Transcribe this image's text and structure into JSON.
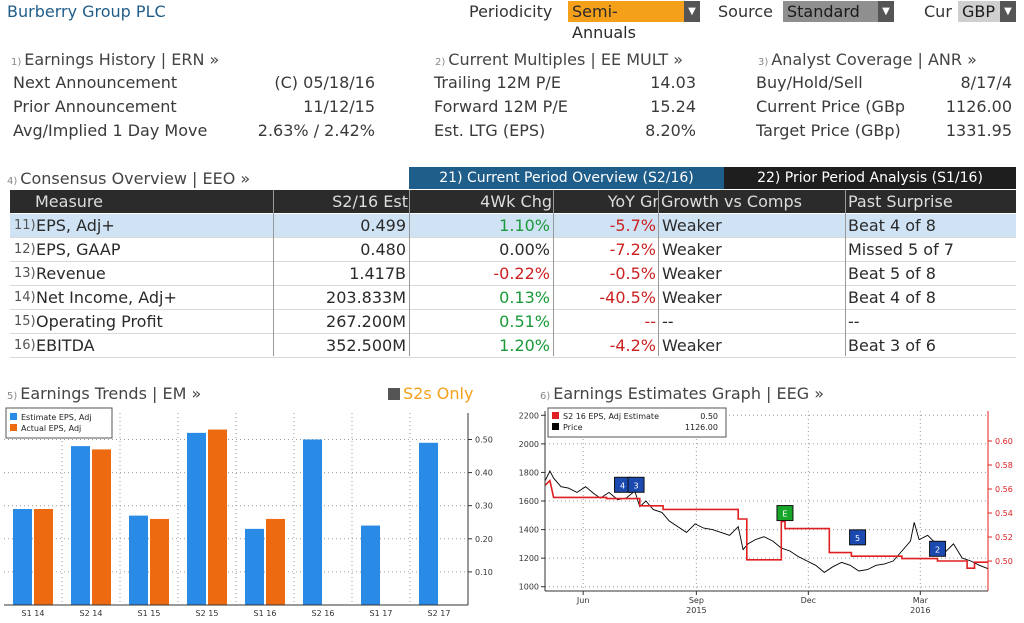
{
  "header": {
    "company": "Burberry Group PLC",
    "periodicity_label": "Periodicity",
    "periodicity_value": "Semi-Annuals",
    "source_label": "Source",
    "source_value": "Standard",
    "cur_label": "Cur",
    "cur_value": "GBP",
    "colors": {
      "periodicity_bg": "#f5a01a",
      "source_bg": "#8f8f8f",
      "cur_bg": "#cfcfcf"
    }
  },
  "earnings_history": {
    "num": "1)",
    "title": "Earnings History | ERN »",
    "rows": [
      {
        "label": "Next Announcement",
        "value": "(C)  05/18/16"
      },
      {
        "label": "Prior Announcement",
        "value": "11/12/15"
      },
      {
        "label": "Avg/Implied 1 Day Move",
        "value": "2.63% / 2.42%"
      }
    ]
  },
  "current_multiples": {
    "num": "2)",
    "title": "Current Multiples | EE MULT »",
    "rows": [
      {
        "label": "Trailing 12M P/E",
        "value": "14.03"
      },
      {
        "label": "Forward 12M P/E",
        "value": "15.24"
      },
      {
        "label": "Est. LTG (EPS)",
        "value": "8.20%"
      }
    ]
  },
  "analyst_coverage": {
    "num": "3)",
    "title": "Analyst Coverage | ANR »",
    "rows": [
      {
        "label": "Buy/Hold/Sell",
        "value": "8/17/4"
      },
      {
        "label": "Current Price (GBp",
        "value": "1126.00"
      },
      {
        "label": "Target Price (GBp)",
        "value": "1331.95"
      }
    ]
  },
  "consensus": {
    "num": "4)",
    "title": "Consensus Overview | EEO »",
    "tab_current": "21) Current Period Overview (S2/16)",
    "tab_prior": "22) Prior Period Analysis (S1/16)",
    "columns": [
      "Measure",
      "S2/16 Est",
      "4Wk Chg",
      "YoY Gr",
      "Growth vs Comps",
      "Past Surprise"
    ],
    "rows": [
      {
        "num": "11)",
        "measure": "EPS, Adj+",
        "est": "0.499",
        "chg": "1.10%",
        "chg_color": "green",
        "yoy": "-5.7%",
        "growth": "Weaker",
        "surprise": "Beat 4 of 8",
        "selected": true
      },
      {
        "num": "12)",
        "measure": "EPS, GAAP",
        "est": "0.480",
        "chg": "0.00%",
        "chg_color": "plain",
        "yoy": "-7.2%",
        "growth": "Weaker",
        "surprise": "Missed 5 of 7",
        "selected": false
      },
      {
        "num": "13)",
        "measure": "Revenue",
        "est": "1.417B",
        "chg": "-0.22%",
        "chg_color": "red",
        "yoy": "-0.5%",
        "growth": "Weaker",
        "surprise": "Beat 5 of 8",
        "selected": false
      },
      {
        "num": "14)",
        "measure": "Net Income, Adj+",
        "est": "203.833M",
        "chg": "0.13%",
        "chg_color": "green",
        "yoy": "-40.5%",
        "growth": "Weaker",
        "surprise": "Beat 4 of 8",
        "selected": false
      },
      {
        "num": "15)",
        "measure": "Operating Profit",
        "est": "267.200M",
        "chg": "0.51%",
        "chg_color": "green",
        "yoy": "--",
        "growth": "--",
        "surprise": "--",
        "selected": false
      },
      {
        "num": "16)",
        "measure": "EBITDA",
        "est": "352.500M",
        "chg": "1.20%",
        "chg_color": "green",
        "yoy": "-4.2%",
        "growth": "Weaker",
        "surprise": "Beat 3 of 6",
        "selected": false
      }
    ]
  },
  "trends_section": {
    "num": "5)",
    "title": "Earnings Trends | EM »",
    "s2s_label": "S2s Only"
  },
  "estimates_section": {
    "num": "6)",
    "title": "Earnings Estimates Graph | EEG »"
  },
  "chart_data": [
    {
      "type": "bar",
      "categories": [
        "S1 14",
        "S2 14",
        "S1 15",
        "S2 15",
        "S1 16",
        "S2 16",
        "S1 17",
        "S2 17"
      ],
      "series": [
        {
          "name": "Estimate EPS, Adj",
          "color": "#2a8be6",
          "values": [
            0.29,
            0.48,
            0.27,
            0.52,
            0.23,
            0.5,
            0.24,
            0.49
          ]
        },
        {
          "name": "Actual EPS, Adj",
          "color": "#ee6a10",
          "values": [
            0.29,
            0.47,
            0.26,
            0.53,
            0.26,
            null,
            null,
            null
          ]
        }
      ],
      "ylim": [
        0.0,
        0.58
      ],
      "yticks": [
        0.1,
        0.2,
        0.3,
        0.4,
        0.5
      ],
      "ytick_labels": [
        "0.10",
        "0.20",
        "0.30",
        "0.40",
        "0.50"
      ],
      "legend_position": "top-left",
      "grid": true
    },
    {
      "type": "line",
      "legend": [
        {
          "name": "S2 16 EPS, Adj Estimate",
          "value": "0.50",
          "color": "#e02020"
        },
        {
          "name": "Price",
          "value": "1126.00",
          "color": "#000000"
        }
      ],
      "x_range": [
        "2015-05-01",
        "2016-04-25"
      ],
      "x_ticks": [
        {
          "date": "2015-06-01",
          "label": "Jun"
        },
        {
          "date": "2015-09-01",
          "label": "Sep",
          "year": "2015"
        },
        {
          "date": "2015-12-01",
          "label": "Dec"
        },
        {
          "date": "2016-03-01",
          "label": "Mar",
          "year": "2016"
        }
      ],
      "y_left": {
        "range": [
          970,
          2230
        ],
        "ticks": [
          1000,
          1200,
          1400,
          1600,
          1800,
          2000,
          2200
        ]
      },
      "y_right": {
        "range": [
          0.475,
          0.625
        ],
        "ticks": [
          0.5,
          0.52,
          0.54,
          0.56,
          0.58,
          0.6
        ],
        "tick_labels": [
          "0.50",
          "0.52",
          "0.54",
          "0.56",
          "0.58",
          "0.60"
        ]
      },
      "series": [
        {
          "name": "Price",
          "color": "#000000",
          "axis": "left",
          "points": [
            [
              "2015-05-01",
              1740
            ],
            [
              "2015-05-05",
              1810
            ],
            [
              "2015-05-08",
              1760
            ],
            [
              "2015-05-14",
              1700
            ],
            [
              "2015-05-20",
              1690
            ],
            [
              "2015-05-27",
              1660
            ],
            [
              "2015-06-03",
              1700
            ],
            [
              "2015-06-10",
              1650
            ],
            [
              "2015-06-15",
              1620
            ],
            [
              "2015-06-22",
              1660
            ],
            [
              "2015-06-29",
              1610
            ],
            [
              "2015-07-06",
              1620
            ],
            [
              "2015-07-13",
              1670
            ],
            [
              "2015-07-17",
              1560
            ],
            [
              "2015-07-22",
              1600
            ],
            [
              "2015-07-28",
              1540
            ],
            [
              "2015-08-04",
              1520
            ],
            [
              "2015-08-10",
              1460
            ],
            [
              "2015-08-17",
              1420
            ],
            [
              "2015-08-24",
              1380
            ],
            [
              "2015-08-31",
              1440
            ],
            [
              "2015-09-07",
              1410
            ],
            [
              "2015-09-14",
              1400
            ],
            [
              "2015-09-21",
              1380
            ],
            [
              "2015-09-28",
              1360
            ],
            [
              "2015-10-05",
              1420
            ],
            [
              "2015-10-09",
              1260
            ],
            [
              "2015-10-13",
              1300
            ],
            [
              "2015-10-19",
              1330
            ],
            [
              "2015-10-26",
              1350
            ],
            [
              "2015-11-02",
              1320
            ],
            [
              "2015-11-09",
              1270
            ],
            [
              "2015-11-16",
              1250
            ],
            [
              "2015-11-23",
              1210
            ],
            [
              "2015-11-30",
              1180
            ],
            [
              "2015-12-07",
              1150
            ],
            [
              "2015-12-14",
              1100
            ],
            [
              "2015-12-21",
              1140
            ],
            [
              "2015-12-28",
              1170
            ],
            [
              "2016-01-04",
              1150
            ],
            [
              "2016-01-11",
              1110
            ],
            [
              "2016-01-18",
              1120
            ],
            [
              "2016-01-25",
              1150
            ],
            [
              "2016-02-01",
              1160
            ],
            [
              "2016-02-08",
              1180
            ],
            [
              "2016-02-15",
              1250
            ],
            [
              "2016-02-22",
              1320
            ],
            [
              "2016-02-25",
              1450
            ],
            [
              "2016-02-29",
              1330
            ],
            [
              "2016-03-07",
              1360
            ],
            [
              "2016-03-14",
              1300
            ],
            [
              "2016-03-21",
              1240
            ],
            [
              "2016-03-28",
              1300
            ],
            [
              "2016-04-04",
              1200
            ],
            [
              "2016-04-11",
              1180
            ],
            [
              "2016-04-18",
              1150
            ],
            [
              "2016-04-25",
              1126
            ]
          ]
        },
        {
          "name": "S2 16 EPS, Adj Estimate",
          "color": "#e02020",
          "axis": "right",
          "points": [
            [
              "2015-05-01",
              0.563
            ],
            [
              "2015-05-05",
              0.567
            ],
            [
              "2015-05-08",
              0.553
            ],
            [
              "2015-06-20",
              0.553
            ],
            [
              "2015-06-20",
              0.552
            ],
            [
              "2015-07-17",
              0.552
            ],
            [
              "2015-07-17",
              0.546
            ],
            [
              "2015-08-05",
              0.546
            ],
            [
              "2015-08-05",
              0.543
            ],
            [
              "2015-10-05",
              0.543
            ],
            [
              "2015-10-05",
              0.535
            ],
            [
              "2015-10-12",
              0.535
            ],
            [
              "2015-10-12",
              0.501
            ],
            [
              "2015-11-09",
              0.501
            ],
            [
              "2015-11-09",
              0.533
            ],
            [
              "2015-11-12",
              0.533
            ],
            [
              "2015-11-12",
              0.527
            ],
            [
              "2015-12-18",
              0.527
            ],
            [
              "2015-12-18",
              0.507
            ],
            [
              "2016-01-05",
              0.507
            ],
            [
              "2016-01-05",
              0.504
            ],
            [
              "2016-02-15",
              0.504
            ],
            [
              "2016-02-15",
              0.502
            ],
            [
              "2016-03-15",
              0.502
            ],
            [
              "2016-03-15",
              0.5
            ],
            [
              "2016-04-08",
              0.5
            ],
            [
              "2016-04-08",
              0.494
            ],
            [
              "2016-04-14",
              0.494
            ],
            [
              "2016-04-14",
              0.499
            ],
            [
              "2016-04-25",
              0.499
            ]
          ]
        }
      ],
      "markers": [
        {
          "label": "4",
          "date": "2015-07-03",
          "price": 1710,
          "color": "#1a4ab0"
        },
        {
          "label": "3",
          "date": "2015-07-14",
          "price": 1710,
          "color": "#1a4ab0"
        },
        {
          "label": "E",
          "date": "2015-11-12",
          "price": 1512,
          "color": "#17a52a"
        },
        {
          "label": "5",
          "date": "2016-01-10",
          "price": 1342,
          "color": "#1a4ab0"
        },
        {
          "label": "2",
          "date": "2016-03-15",
          "price": 1262,
          "color": "#1a4ab0"
        }
      ]
    }
  ]
}
